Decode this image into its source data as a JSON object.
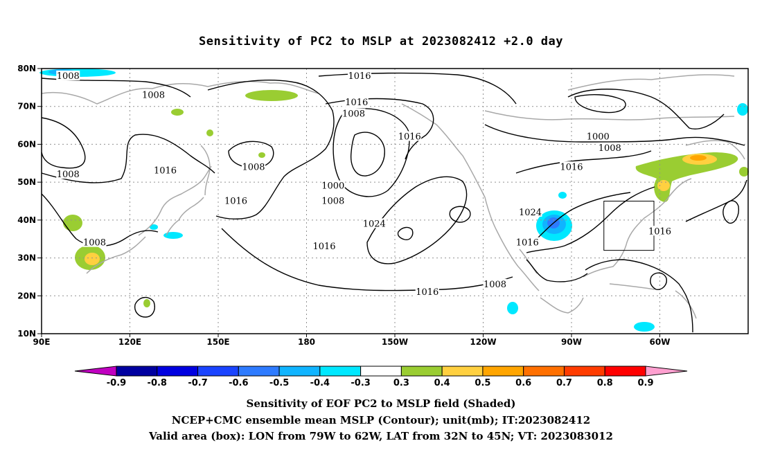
{
  "title": "Sensitivity of PC2 to MSLP at 2023082412 +2.0 day",
  "lat_labels": [
    "80N",
    "70N",
    "60N",
    "50N",
    "40N",
    "30N",
    "20N",
    "10N"
  ],
  "lon_labels": [
    "90E",
    "120E",
    "150E",
    "180",
    "150W",
    "120W",
    "90W",
    "60W"
  ],
  "contour_labels": [
    {
      "text": "1008",
      "lon": 99,
      "lat": 78
    },
    {
      "text": "1008",
      "lon": 128,
      "lat": 73
    },
    {
      "text": "1016",
      "lon": -162,
      "lat": 78
    },
    {
      "text": "1016",
      "lon": -163,
      "lat": 71
    },
    {
      "text": "1008",
      "lon": -164,
      "lat": 68
    },
    {
      "text": "1016",
      "lon": -145,
      "lat": 62
    },
    {
      "text": "1000",
      "lon": -81,
      "lat": 62
    },
    {
      "text": "1008",
      "lon": -77,
      "lat": 59
    },
    {
      "text": "1016",
      "lon": -90,
      "lat": 54
    },
    {
      "text": "1008",
      "lon": 99,
      "lat": 52
    },
    {
      "text": "1016",
      "lon": 132,
      "lat": 53
    },
    {
      "text": "1008",
      "lon": 162,
      "lat": 54
    },
    {
      "text": "1000",
      "lon": -171,
      "lat": 49
    },
    {
      "text": "1008",
      "lon": -171,
      "lat": 45
    },
    {
      "text": "1016",
      "lon": 156,
      "lat": 45
    },
    {
      "text": "1024",
      "lon": -104,
      "lat": 42
    },
    {
      "text": "1024",
      "lon": -157,
      "lat": 39
    },
    {
      "text": "1016",
      "lon": -60,
      "lat": 37
    },
    {
      "text": "1016",
      "lon": -105,
      "lat": 34
    },
    {
      "text": "1008",
      "lon": 108,
      "lat": 34
    },
    {
      "text": "1016",
      "lon": -174,
      "lat": 33
    },
    {
      "text": "1008",
      "lon": -116,
      "lat": 23
    },
    {
      "text": "1016",
      "lon": -139,
      "lat": 21
    }
  ],
  "colorbar": {
    "labels": [
      "-0.9",
      "-0.8",
      "-0.7",
      "-0.6",
      "-0.5",
      "-0.4",
      "-0.3",
      "0.3",
      "0.4",
      "0.5",
      "0.6",
      "0.7",
      "0.8",
      "0.9"
    ],
    "colors": [
      "#0000a0",
      "#0000e0",
      "#1a44ff",
      "#2e7bff",
      "#10b4ff",
      "#00e8ff",
      "#ffffff",
      "#9acd32",
      "#ffd040",
      "#ffa500",
      "#ff7000",
      "#ff3c00",
      "#ff0000"
    ],
    "left_tip": "#c000c0",
    "right_tip": "#ffa0d0"
  },
  "captions": [
    "Sensitivity of EOF PC2 to MSLP field (Shaded)",
    "NCEP+CMC ensemble mean MSLP (Contour); unit(mb); IT:2023082412",
    "Valid area (box): LON from 79W to 62W, LAT from 32N to 45N; VT: 2023083012"
  ],
  "valid_box": {
    "lon_min": -79,
    "lon_max": -62,
    "lat_min": 32,
    "lat_max": 45
  }
}
